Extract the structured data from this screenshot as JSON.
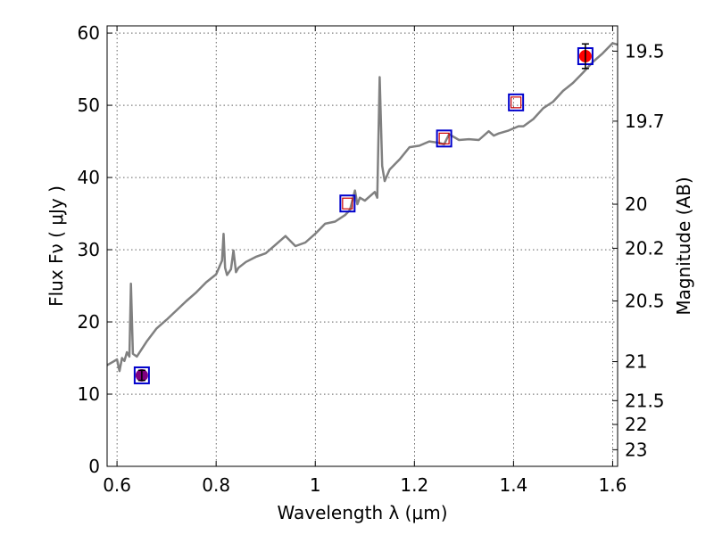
{
  "chart_data": {
    "type": "line",
    "title": "",
    "xlabel": "Wavelength  λ (μm)",
    "ylabel": "Flux  Fν  ( μJy )",
    "ylabel_right": "Magnitude (AB)",
    "xlim": [
      0.58,
      1.61
    ],
    "ylim": [
      0,
      61
    ],
    "grid": true,
    "x_ticks": [
      0.6,
      0.8,
      1.0,
      1.2,
      1.4,
      1.6
    ],
    "x_tick_labels": [
      "0.6",
      "0.8",
      "1",
      "1.2",
      "1.4",
      "1.6"
    ],
    "y_ticks": [
      0,
      10,
      20,
      30,
      40,
      50,
      60
    ],
    "y_tick_labels": [
      "0",
      "10",
      "20",
      "30",
      "40",
      "50",
      "60"
    ],
    "right_ticks": [
      {
        "label": "19.5",
        "flux": 57.5
      },
      {
        "label": "19.7",
        "flux": 47.8
      },
      {
        "label": "20",
        "flux": 36.3
      },
      {
        "label": "20.2",
        "flux": 30.2
      },
      {
        "label": "20.5",
        "flux": 22.9
      },
      {
        "label": "21",
        "flux": 14.5
      },
      {
        "label": "21.5",
        "flux": 9.1
      },
      {
        "label": "22",
        "flux": 5.8
      },
      {
        "label": "23",
        "flux": 2.3
      }
    ],
    "spectrum": {
      "color": "#808080",
      "x": [
        0.58,
        0.6,
        0.605,
        0.61,
        0.615,
        0.62,
        0.625,
        0.628,
        0.632,
        0.64,
        0.66,
        0.68,
        0.7,
        0.72,
        0.74,
        0.76,
        0.78,
        0.8,
        0.812,
        0.815,
        0.818,
        0.822,
        0.83,
        0.835,
        0.84,
        0.845,
        0.86,
        0.88,
        0.9,
        0.92,
        0.94,
        0.96,
        0.98,
        1.0,
        1.02,
        1.04,
        1.06,
        1.07,
        1.08,
        1.085,
        1.09,
        1.1,
        1.12,
        1.125,
        1.13,
        1.135,
        1.14,
        1.15,
        1.17,
        1.19,
        1.21,
        1.23,
        1.25,
        1.26,
        1.27,
        1.29,
        1.31,
        1.33,
        1.35,
        1.36,
        1.37,
        1.39,
        1.41,
        1.42,
        1.44,
        1.46,
        1.48,
        1.5,
        1.52,
        1.54,
        1.56,
        1.58,
        1.6,
        1.61
      ],
      "y": [
        14.0,
        14.8,
        13.2,
        15.0,
        14.6,
        15.8,
        15.2,
        25.3,
        15.6,
        15.2,
        17.3,
        19.1,
        20.3,
        21.6,
        22.9,
        24.1,
        25.5,
        26.6,
        28.5,
        32.2,
        27.5,
        26.5,
        27.3,
        29.9,
        26.9,
        27.5,
        28.3,
        29.0,
        29.5,
        30.7,
        31.9,
        30.5,
        31.0,
        32.2,
        33.6,
        33.9,
        34.8,
        35.5,
        38.2,
        36.3,
        37.2,
        36.8,
        38.0,
        37.2,
        53.9,
        41.6,
        39.5,
        41.1,
        42.5,
        44.2,
        44.4,
        45.0,
        44.8,
        44.6,
        46.0,
        45.2,
        45.3,
        45.2,
        46.4,
        45.8,
        46.1,
        46.5,
        47.1,
        47.1,
        48.1,
        49.6,
        50.5,
        52.0,
        53.1,
        54.5,
        56.0,
        57.2,
        58.6,
        58.4
      ]
    },
    "photometry": [
      {
        "x": 0.65,
        "y": 12.6,
        "marker": "filled-circle",
        "color": "#800080",
        "err": 0.7,
        "box": true
      },
      {
        "x": 1.065,
        "y": 36.4,
        "marker": "open-square",
        "color": "#cc0000",
        "err": 0,
        "box": true
      },
      {
        "x": 1.26,
        "y": 45.4,
        "marker": "open-square",
        "color": "#cc0000",
        "err": 0,
        "box": true
      },
      {
        "x": 1.405,
        "y": 50.4,
        "marker": "open-square",
        "color": "#cc0000",
        "err": 0,
        "box": true
      },
      {
        "x": 1.545,
        "y": 56.8,
        "marker": "filled-circle",
        "color": "#ff0000",
        "err": 1.7,
        "box": true
      }
    ],
    "box_color": "#0000cc"
  }
}
